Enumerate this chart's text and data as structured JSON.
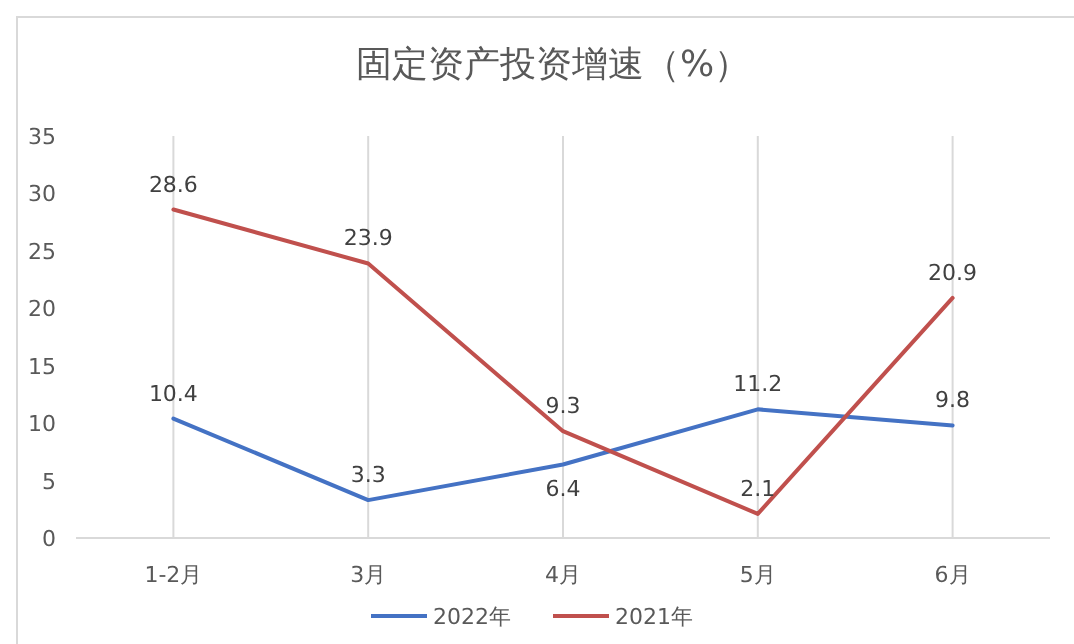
{
  "chart_data": {
    "type": "line",
    "title": "固定资产投资增速（%）",
    "categories": [
      "1-2月",
      "3月",
      "4月",
      "5月",
      "6月"
    ],
    "series": [
      {
        "name": "2022年",
        "color": "#4472c4",
        "values": [
          10.4,
          3.3,
          6.4,
          11.2,
          9.8
        ]
      },
      {
        "name": "2021年",
        "color": "#c0504d",
        "values": [
          28.6,
          23.9,
          9.3,
          2.1,
          20.9
        ]
      }
    ],
    "ylim": [
      0,
      35
    ],
    "yticks": [
      0,
      5,
      10,
      15,
      20,
      25,
      30,
      35
    ],
    "grid": "x",
    "legend": "bottom",
    "data_labels": true
  }
}
